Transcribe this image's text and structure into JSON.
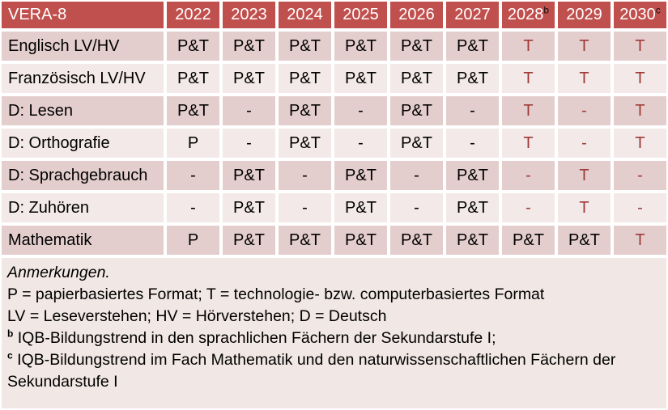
{
  "colors": {
    "header_bg": "#c0504d",
    "header_text": "#ffffff",
    "header_sup": "#111111",
    "band_dark": "#e4cecd",
    "band_light": "#f2e9e8",
    "notes_bg": "#f1e7e4",
    "text": "#000000",
    "accent_red": "#9e3a38",
    "grid_white": "#ffffff"
  },
  "table": {
    "title_cell": "VERA-8",
    "columns": [
      {
        "text": "2022",
        "sup": ""
      },
      {
        "text": "2023",
        "sup": ""
      },
      {
        "text": "2024",
        "sup": ""
      },
      {
        "text": "2025",
        "sup": ""
      },
      {
        "text": "2026",
        "sup": ""
      },
      {
        "text": "2027",
        "sup": ""
      },
      {
        "text": "2028",
        "sup": "b"
      },
      {
        "text": "2029",
        "sup": ""
      },
      {
        "text": "2030",
        "sup": "c"
      }
    ],
    "rows": [
      {
        "label": "Englisch LV/HV",
        "band": "dark",
        "cells": [
          {
            "text": "P&T",
            "red": false
          },
          {
            "text": "P&T",
            "red": false
          },
          {
            "text": "P&T",
            "red": false
          },
          {
            "text": "P&T",
            "red": false
          },
          {
            "text": "P&T",
            "red": false
          },
          {
            "text": "P&T",
            "red": false
          },
          {
            "text": "T",
            "red": true
          },
          {
            "text": "T",
            "red": true
          },
          {
            "text": "T",
            "red": true
          }
        ]
      },
      {
        "label": "Französisch LV/HV",
        "band": "light",
        "cells": [
          {
            "text": "P&T",
            "red": false
          },
          {
            "text": "P&T",
            "red": false
          },
          {
            "text": "P&T",
            "red": false
          },
          {
            "text": "P&T",
            "red": false
          },
          {
            "text": "P&T",
            "red": false
          },
          {
            "text": "P&T",
            "red": false
          },
          {
            "text": "T",
            "red": true
          },
          {
            "text": "T",
            "red": true
          },
          {
            "text": "T",
            "red": true
          }
        ]
      },
      {
        "label": "D: Lesen",
        "band": "dark",
        "cells": [
          {
            "text": "P&T",
            "red": false
          },
          {
            "text": "-",
            "red": false
          },
          {
            "text": "P&T",
            "red": false
          },
          {
            "text": "-",
            "red": false
          },
          {
            "text": "P&T",
            "red": false
          },
          {
            "text": "-",
            "red": false
          },
          {
            "text": "T",
            "red": true
          },
          {
            "text": "-",
            "red": true
          },
          {
            "text": "T",
            "red": true
          }
        ]
      },
      {
        "label": "D: Orthografie",
        "band": "light",
        "cells": [
          {
            "text": "P",
            "red": false
          },
          {
            "text": "-",
            "red": false
          },
          {
            "text": "P&T",
            "red": false
          },
          {
            "text": "-",
            "red": false
          },
          {
            "text": "P&T",
            "red": false
          },
          {
            "text": "-",
            "red": false
          },
          {
            "text": "T",
            "red": true
          },
          {
            "text": "-",
            "red": true
          },
          {
            "text": "T",
            "red": true
          }
        ]
      },
      {
        "label": "D: Sprachgebrauch",
        "band": "dark",
        "cells": [
          {
            "text": "-",
            "red": false
          },
          {
            "text": "P&T",
            "red": false
          },
          {
            "text": "-",
            "red": false
          },
          {
            "text": "P&T",
            "red": false
          },
          {
            "text": "-",
            "red": false
          },
          {
            "text": "P&T",
            "red": false
          },
          {
            "text": "-",
            "red": true
          },
          {
            "text": "T",
            "red": true
          },
          {
            "text": "-",
            "red": true
          }
        ]
      },
      {
        "label": "D: Zuhören",
        "band": "light",
        "cells": [
          {
            "text": "-",
            "red": false
          },
          {
            "text": "P&T",
            "red": false
          },
          {
            "text": "-",
            "red": false
          },
          {
            "text": "P&T",
            "red": false
          },
          {
            "text": "-",
            "red": false
          },
          {
            "text": "P&T",
            "red": false
          },
          {
            "text": "-",
            "red": true
          },
          {
            "text": "T",
            "red": true
          },
          {
            "text": "-",
            "red": true
          }
        ]
      },
      {
        "label": "Mathematik",
        "band": "dark",
        "cells": [
          {
            "text": "P",
            "red": false
          },
          {
            "text": "P&T",
            "red": false
          },
          {
            "text": "P&T",
            "red": false
          },
          {
            "text": "P&T",
            "red": false
          },
          {
            "text": "P&T",
            "red": false
          },
          {
            "text": "P&T",
            "red": false
          },
          {
            "text": "P&T",
            "red": false
          },
          {
            "text": "P&T",
            "red": false
          },
          {
            "text": "T",
            "red": true
          }
        ]
      }
    ]
  },
  "notes": {
    "lines": [
      {
        "sup": "",
        "italic": true,
        "text": "Anmerkungen."
      },
      {
        "sup": "",
        "italic": false,
        "text": "P = papierbasiertes Format; T = technologie- bzw. computerbasiertes Format"
      },
      {
        "sup": "",
        "italic": false,
        "text": "LV = Leseverstehen; HV = Hörverstehen; D = Deutsch"
      },
      {
        "sup": "b",
        "italic": false,
        "text": "IQB-Bildungstrend in den sprachlichen Fächern der Sekundarstufe I;"
      },
      {
        "sup": "c",
        "italic": false,
        "text": "IQB-Bildungstrend im Fach Mathematik und den naturwissenschaftlichen Fächern der Sekundarstufe I"
      }
    ]
  }
}
